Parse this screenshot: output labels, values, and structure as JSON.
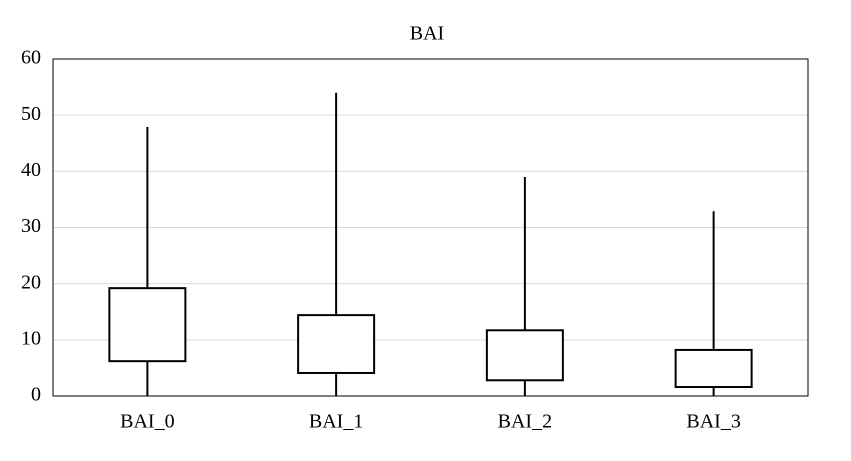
{
  "chart_data": {
    "type": "box",
    "title": "BAI",
    "categories": [
      "BAI_0",
      "BAI_1",
      "BAI_2",
      "BAI_3"
    ],
    "min": [
      0,
      0,
      0,
      0
    ],
    "q1": [
      6.2,
      4.1,
      2.8,
      1.6
    ],
    "q3": [
      19.2,
      14.4,
      11.7,
      8.2
    ],
    "max": [
      47.9,
      54,
      39,
      32.9
    ],
    "color": "#000000",
    "ylim": [
      0,
      60
    ],
    "yticks": [
      0,
      10,
      20,
      30,
      40,
      50,
      60
    ],
    "grid": true
  }
}
